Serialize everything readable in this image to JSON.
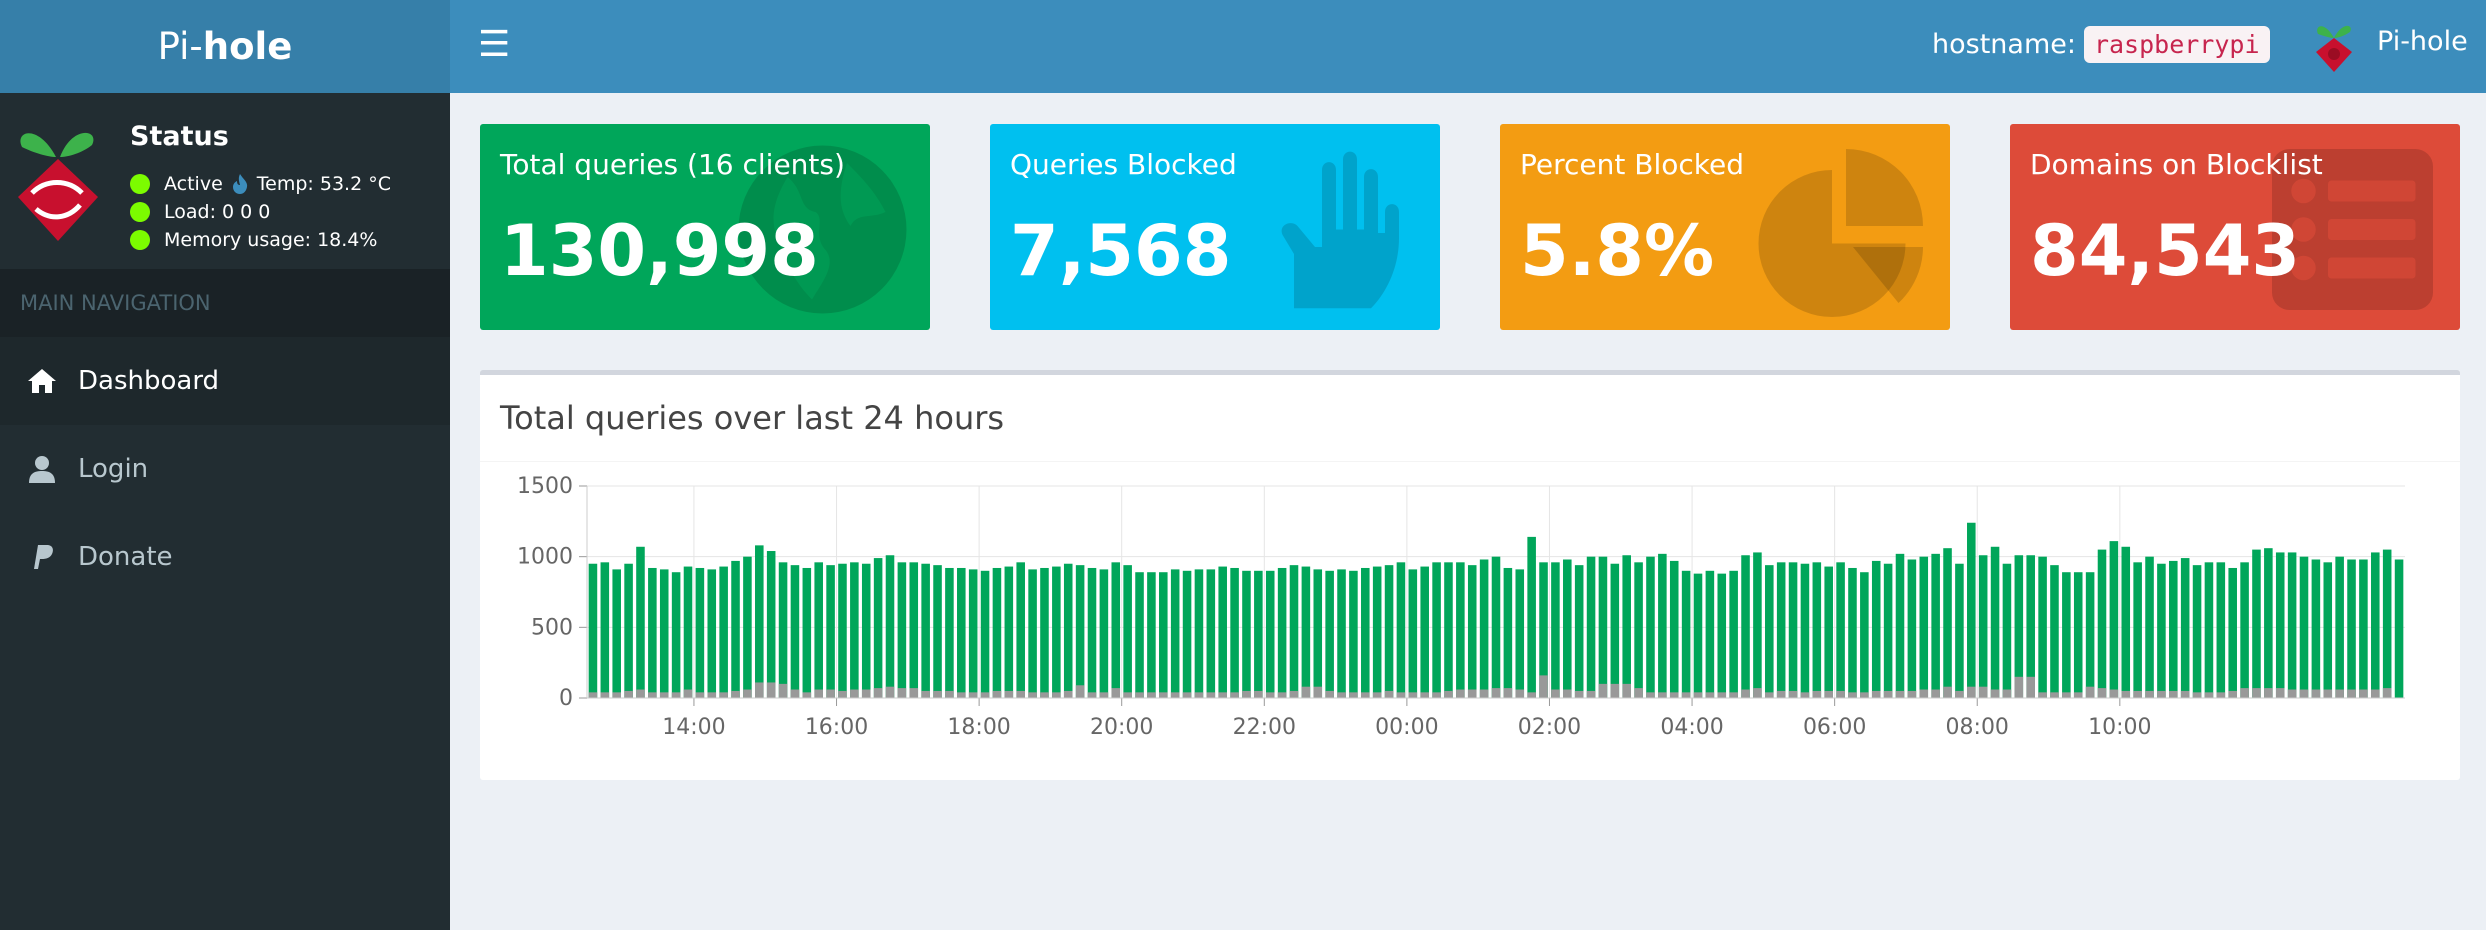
{
  "brand": {
    "prefix": "Pi-",
    "suffix": "hole"
  },
  "navbar": {
    "toggle_icon": "hamburger-icon",
    "hostname_label": "hostname:",
    "hostname_value": "raspberrypi",
    "user_name": "Pi-hole"
  },
  "status": {
    "title": "Status",
    "active": "Active",
    "temp": "Temp: 53.2 °C",
    "load": "Load:  0  0  0",
    "memory": "Memory usage:  18.4%",
    "indicator_color": "#7cfc00"
  },
  "nav": {
    "header": "MAIN NAVIGATION",
    "items": [
      {
        "label": "Dashboard",
        "icon": "home-icon",
        "active": true
      },
      {
        "label": "Login",
        "icon": "user-icon",
        "active": false
      },
      {
        "label": "Donate",
        "icon": "paypal-icon",
        "active": false
      }
    ]
  },
  "stats": [
    {
      "label": "Total queries (16 clients)",
      "value": "130,998",
      "color": "#00a65a",
      "icon": "globe-icon"
    },
    {
      "label": "Queries Blocked",
      "value": "7,568",
      "color": "#00c0ef",
      "icon": "hand-icon"
    },
    {
      "label": "Percent Blocked",
      "value": "5.8%",
      "color": "#f39c12",
      "icon": "pie-chart-icon"
    },
    {
      "label": "Domains on Blocklist",
      "value": "84,543",
      "color": "#dd4b39",
      "icon": "list-icon"
    }
  ],
  "chart_panel": {
    "title": "Total queries over last 24 hours"
  },
  "chart_data": {
    "type": "bar",
    "title": "Total queries over last 24 hours",
    "xlabel": "",
    "ylabel": "",
    "ylim": [
      0,
      1500
    ],
    "yticks": [
      0,
      500,
      1000,
      1500
    ],
    "xticks": [
      "14:00",
      "16:00",
      "18:00",
      "20:00",
      "22:00",
      "00:00",
      "02:00",
      "04:00",
      "06:00",
      "08:00",
      "10:00"
    ],
    "xtick_start_index": 9,
    "xtick_step": 12,
    "stacked": true,
    "grid": true,
    "colors": {
      "total": "#00a65a",
      "blocked": "#999999"
    },
    "total": [
      950,
      960,
      910,
      950,
      1070,
      920,
      910,
      890,
      930,
      920,
      910,
      930,
      970,
      1000,
      1080,
      1040,
      960,
      940,
      920,
      960,
      940,
      950,
      960,
      950,
      990,
      1010,
      960,
      960,
      950,
      940,
      920,
      920,
      910,
      900,
      920,
      930,
      960,
      910,
      920,
      930,
      950,
      940,
      920,
      910,
      960,
      940,
      890,
      890,
      890,
      910,
      900,
      910,
      910,
      930,
      920,
      900,
      900,
      900,
      920,
      940,
      930,
      910,
      900,
      910,
      900,
      920,
      930,
      940,
      960,
      910,
      930,
      960,
      960,
      960,
      940,
      980,
      1000,
      920,
      910,
      1140,
      960,
      960,
      980,
      940,
      1000,
      1000,
      950,
      1010,
      960,
      1000,
      1020,
      970,
      900,
      880,
      900,
      880,
      900,
      1010,
      1030,
      940,
      960,
      960,
      950,
      960,
      930,
      960,
      920,
      890,
      970,
      950,
      1020,
      980,
      1000,
      1020,
      1060,
      950,
      1240,
      1010,
      1070,
      950,
      1010,
      1010,
      1000,
      940,
      890,
      890,
      890,
      1050,
      1110,
      1070,
      960,
      1000,
      950,
      970,
      990,
      940,
      960,
      960,
      920,
      960,
      1050,
      1060,
      1030,
      1030,
      1000,
      980,
      960,
      1000,
      980,
      980,
      1030,
      1050,
      980
    ],
    "blocked": [
      40,
      40,
      40,
      50,
      60,
      40,
      40,
      40,
      60,
      40,
      40,
      40,
      50,
      60,
      110,
      110,
      100,
      60,
      40,
      60,
      60,
      50,
      60,
      60,
      70,
      80,
      70,
      70,
      50,
      50,
      50,
      40,
      40,
      40,
      50,
      50,
      50,
      40,
      40,
      40,
      50,
      90,
      40,
      40,
      70,
      40,
      40,
      40,
      40,
      40,
      40,
      40,
      40,
      40,
      40,
      50,
      50,
      40,
      40,
      50,
      80,
      80,
      50,
      40,
      40,
      40,
      40,
      50,
      40,
      40,
      40,
      40,
      50,
      60,
      60,
      60,
      70,
      70,
      60,
      40,
      160,
      60,
      60,
      50,
      50,
      100,
      100,
      100,
      70,
      40,
      40,
      40,
      40,
      40,
      40,
      40,
      40,
      60,
      70,
      40,
      50,
      50,
      40,
      50,
      50,
      50,
      40,
      40,
      50,
      50,
      50,
      50,
      60,
      60,
      80,
      50,
      80,
      80,
      60,
      60,
      150,
      150,
      40,
      40,
      40,
      40,
      80,
      70,
      60,
      50,
      50,
      50,
      50,
      50,
      50,
      40,
      40,
      40,
      50,
      70,
      70,
      70,
      70,
      60,
      60,
      60,
      60,
      60,
      60,
      60,
      60,
      70
    ]
  }
}
